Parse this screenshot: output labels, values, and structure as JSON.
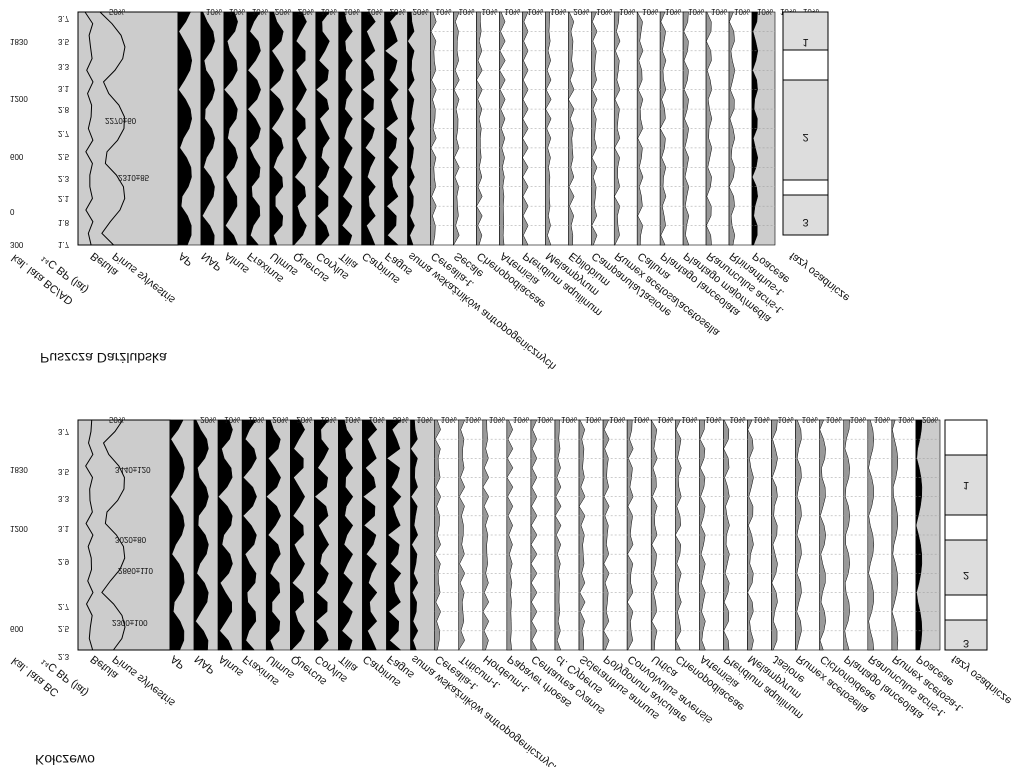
{
  "panels": [
    {
      "title": "Puszcza Darżlubska",
      "age_label": "kal. lata BC/AD",
      "c14_label": "¹⁴C BP (lat)",
      "ages": [
        "1830",
        "1200",
        "600",
        "0",
        "300"
      ],
      "depths": [
        "3.7",
        "3.5",
        "3.3",
        "3.1",
        "2.8",
        "2.7",
        "2.5",
        "2.3",
        "2.1",
        "1.8",
        "1.7"
      ],
      "dates": [
        "2270±60",
        "2310±85"
      ],
      "columns": [
        "Betula",
        "Pinus sylvestris",
        "AP",
        "NAP",
        "Alnus",
        "Fraxinus",
        "Ulmus",
        "Quercus",
        "Corylus",
        "Tilia",
        "Carpinus",
        "Fagus",
        "suma wskaźników antropogenicznych",
        "Cerealia-t.",
        "Secale",
        "Chenopodiaceae",
        "Artemisia",
        "Pteridium aquilinum",
        "Melampyrum",
        "Epilobium",
        "Campanula/Jasione",
        "Rumex acetosa/acetosella",
        "Calluna",
        "Plantago lanceolata",
        "Plantago major/media",
        "Ranunculus acris-t.",
        "Rhinanthus-t.",
        "Poaceae",
        "fazy osadnicze"
      ],
      "ticks": [
        "50%",
        "10%",
        "10%",
        "10%",
        "20%",
        "20%",
        "10%",
        "10%",
        "10%",
        "20%",
        "20%",
        "10%",
        "10%",
        "10%",
        "10%",
        "10%",
        "10%",
        "20%",
        "10%",
        "10%",
        "10%",
        "10%",
        "10%",
        "10%",
        "10%",
        "10%",
        "10%",
        "10%"
      ],
      "zones": [
        "1",
        "2",
        "3"
      ]
    },
    {
      "title": "Kołczewo",
      "age_label": "kal. lata BC",
      "c14_label": "¹⁴C BP (lat)",
      "ages": [
        "1830",
        "1200",
        "600"
      ],
      "depths": [
        "3.7",
        "3.5",
        "3.3",
        "3.1",
        "2.9",
        "2.7",
        "2.5",
        "2.3"
      ],
      "dates": [
        "3440±120",
        "3020±80",
        "2860±110",
        "2300±100"
      ],
      "columns": [
        "Betula",
        "Pinus sylvestris",
        "AP",
        "NAP",
        "Alnus",
        "Fraxinus",
        "Ulmus",
        "Quercus",
        "Corylus",
        "Tilia",
        "Carpinus",
        "Fagus",
        "suma wskaźników antropogenicznych",
        "Cerealia-t.",
        "Triticum-t.",
        "Hordeum-t.",
        "Papaver rhoeas",
        "Centaurea cyanus",
        "cf. Cyperus",
        "Scleranthus annuus",
        "Polygonum aviculare",
        "Convolvulus arvensis",
        "Urtica",
        "Chenopodiaceae",
        "Artemisia",
        "Pteridium aquilinum",
        "Melampyrum",
        "Jasione",
        "Rumex acetosella",
        "Cichorioideae",
        "Plantago lanceolata",
        "Ranunculus acris-t.",
        "Rumex acetosa-t.",
        "Poaceae",
        "fazy osadnicze"
      ],
      "ticks": [
        "50%",
        "20%",
        "10%",
        "10%",
        "20%",
        "20%",
        "10%",
        "10%",
        "10%",
        "30%",
        "10%",
        "10%",
        "10%",
        "10%",
        "10%",
        "10%",
        "10%",
        "10%",
        "10%",
        "10%",
        "10%",
        "10%",
        "10%",
        "10%",
        "10%",
        "10%",
        "10%",
        "10%",
        "10%",
        "10%",
        "10%",
        "20%"
      ],
      "zones": [
        "1",
        "2",
        "3"
      ]
    }
  ]
}
